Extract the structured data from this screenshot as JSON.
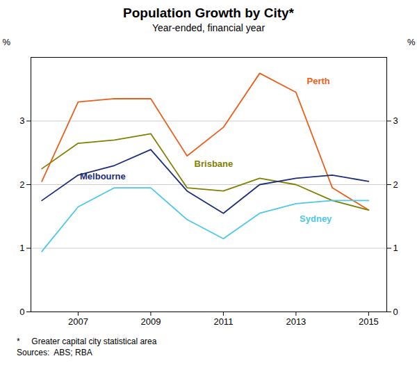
{
  "chart_data": {
    "type": "line",
    "title": "Population Growth by City*",
    "subtitle": "Year-ended, financial year",
    "footnotes": [
      "*     Greater capital city statistical area",
      "Sources:  ABS; RBA"
    ],
    "ylabel": "%",
    "y2label": "%",
    "x": [
      2006,
      2007,
      2008,
      2009,
      2010,
      2011,
      2012,
      2013,
      2014,
      2015
    ],
    "series": [
      {
        "name": "Perth",
        "color": "#E8601C",
        "values": [
          2.05,
          3.3,
          3.35,
          3.35,
          2.45,
          2.9,
          3.75,
          3.45,
          1.95,
          1.6
        ]
      },
      {
        "name": "Brisbane",
        "color": "#808000",
        "values": [
          2.25,
          2.65,
          2.7,
          2.8,
          1.95,
          1.9,
          2.1,
          2.0,
          1.75,
          1.6
        ]
      },
      {
        "name": "Melbourne",
        "color": "#1C2D7A",
        "values": [
          1.75,
          2.15,
          2.3,
          2.55,
          1.9,
          1.55,
          2.0,
          2.1,
          2.15,
          2.05
        ]
      },
      {
        "name": "Sydney",
        "color": "#4DC8E8",
        "values": [
          0.95,
          1.65,
          1.95,
          1.95,
          1.45,
          1.15,
          1.55,
          1.7,
          1.75,
          1.75
        ]
      }
    ],
    "annotations": [
      {
        "text": "Perth",
        "x": 2013.3,
        "y": 3.58,
        "color": "#E8601C"
      },
      {
        "text": "Brisbane",
        "x": 2010.2,
        "y": 2.28,
        "color": "#808000"
      },
      {
        "text": "Melbourne",
        "x": 2007.05,
        "y": 2.08,
        "color": "#1C2D7A"
      },
      {
        "text": "Sydney",
        "x": 2013.1,
        "y": 1.42,
        "color": "#4DC8E8"
      }
    ],
    "xlim": [
      2005.7,
      2015.5
    ],
    "xticks": [
      2007,
      2009,
      2011,
      2013,
      2015
    ],
    "ylim": [
      0,
      4.0
    ],
    "yticks": [
      0,
      1,
      2,
      3
    ],
    "y2lim": [
      0,
      4.0
    ],
    "y2ticks": [
      0,
      1,
      2,
      3
    ],
    "grid": true
  }
}
